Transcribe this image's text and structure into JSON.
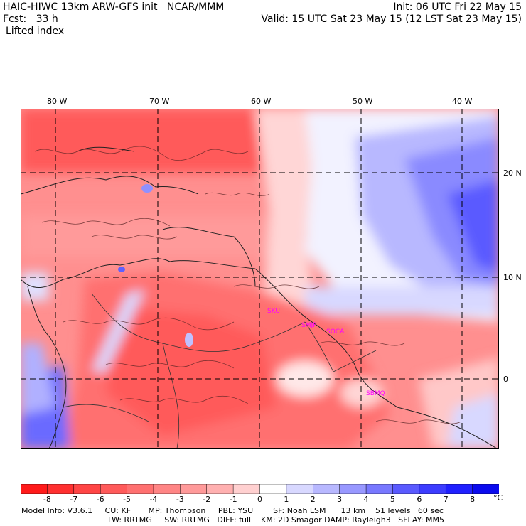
{
  "header": {
    "model_title": "HAIC-HIWC 13km ARW-GFS init   NCAR/MMM",
    "init": "Init: 06 UTC Fri 22 May 15",
    "forecast": "Fcst:   33 h",
    "valid": "Valid: 15 UTC Sat 23 May 15 (12 LST Sat 23 May 15)",
    "field": "Lifted index"
  },
  "map": {
    "lon_labels": [
      "80 W",
      "70 W",
      "60 W",
      "50 W",
      "40 W"
    ],
    "lat_labels": [
      "20 N",
      "10 N",
      "0"
    ],
    "stations": [
      "SKU",
      "SMJP",
      "SOCA",
      "SBMQ"
    ]
  },
  "colorbar": {
    "labels": [
      "-8",
      "-7",
      "-6",
      "-5",
      "-4",
      "-3",
      "-2",
      "-1",
      "0",
      "1",
      "2",
      "3",
      "4",
      "5",
      "6",
      "7",
      "8"
    ],
    "unit": "°C",
    "colors": [
      "#ff1a1a",
      "#ff3030",
      "#ff4545",
      "#ff5a5a",
      "#ff7070",
      "#ff8585",
      "#ff9a9a",
      "#ffb0b0",
      "#ffd0d0",
      "#ffffff",
      "#d8d8ff",
      "#b8b8ff",
      "#9898ff",
      "#7878ff",
      "#5a5aff",
      "#3c3cff",
      "#2020ff",
      "#0a0aee"
    ]
  },
  "footer": {
    "line1": "Model Info: V3.6.1     CU: KF       MP: Thompson     PBL: YSU        SF: Noah LSM      13 km    51 levels   60 sec",
    "line2": "LW: RRTMG     SW: RRTMG   DIFF: full    KM: 2D Smagor DAMP: Rayleigh3   SFLAY: MM5"
  }
}
